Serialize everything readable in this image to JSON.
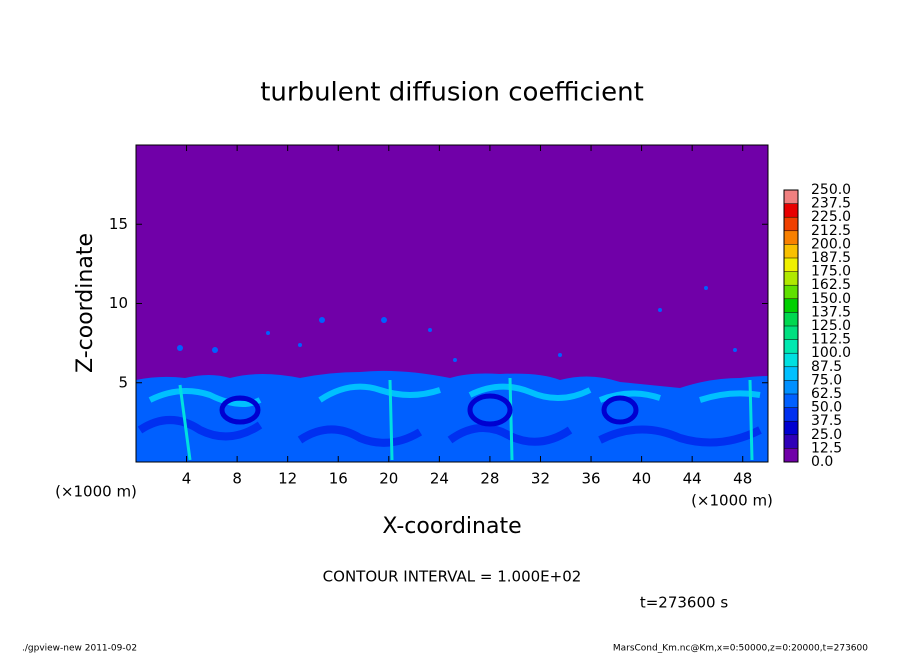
{
  "chart_data": {
    "type": "contour",
    "title": "turbulent diffusion coefficient",
    "x_label": "X-coordinate",
    "y_label": "Z-coordinate",
    "x_unit_left": "(×1000 m)",
    "x_unit_right": "(×1000 m)",
    "contour_note": "CONTOUR INTERVAL = 1.000E+02",
    "time_note": "t=273600 s",
    "footer_left": "./gpview-new  2011-09-02",
    "footer_right": "MarsCond_Km.nc@Km,x=0:50000,z=0:20000,t=273600",
    "xlim": [
      0,
      50
    ],
    "xticks": [
      4,
      8,
      12,
      16,
      20,
      24,
      28,
      32,
      36,
      40,
      44,
      48
    ],
    "ylim": [
      0,
      20
    ],
    "yticks": [
      5,
      10,
      15
    ],
    "colorbar": {
      "ticks": [
        {
          "value": 0,
          "label": "0.0"
        },
        12.5,
        {
          "value": 25,
          "label": "25.0"
        },
        37.5,
        {
          "value": 50,
          "label": "50.0"
        },
        62.5,
        {
          "value": 75,
          "label": "75.0"
        },
        87.5,
        {
          "value": 100,
          "label": "100.0"
        },
        112.5,
        {
          "value": 125,
          "label": "125.0"
        },
        137.5,
        {
          "value": 150,
          "label": "150.0"
        },
        162.5,
        {
          "value": 175,
          "label": "175.0"
        },
        187.5,
        {
          "value": 200,
          "label": "200.0"
        },
        212.5,
        {
          "value": 225,
          "label": "225.0"
        },
        237.5,
        {
          "value": 250,
          "label": "250.0"
        }
      ],
      "colors": [
        "#7000a8",
        "#3000b8",
        "#0000d0",
        "#0030f0",
        "#0060ff",
        "#0090ff",
        "#00c0ff",
        "#00e0e0",
        "#00e8b0",
        "#00e080",
        "#00d850",
        "#00d000",
        "#60e000",
        "#b0e800",
        "#f0f000",
        "#f8c000",
        "#f88000",
        "#f04000",
        "#e80000",
        "#f08080"
      ]
    }
  }
}
